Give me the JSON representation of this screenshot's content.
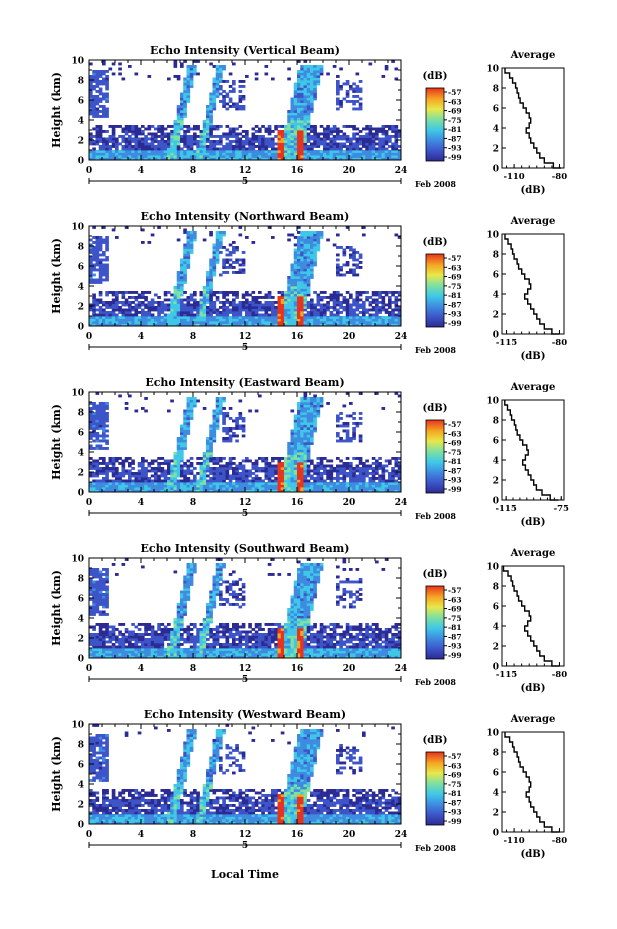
{
  "chart_data": [
    {
      "type": "heatmap",
      "title": "Echo Intensity (Vertical Beam)",
      "ylabel": "Height (km)",
      "ylim": [
        0,
        10
      ],
      "yticks": [
        0,
        2,
        4,
        6,
        8,
        10
      ],
      "xlim": [
        0,
        24
      ],
      "xticks": [
        0,
        4,
        8,
        12,
        16,
        20,
        24
      ],
      "date_axis": {
        "tick": "5",
        "label": "Feb 2008"
      },
      "colorbar": {
        "unit": "(dB)",
        "ticks": [
          "-57",
          "-63",
          "-69",
          "-75",
          "-81",
          "-87",
          "-93",
          "-99"
        ]
      },
      "average_profile": {
        "title": "Average",
        "xlabel": "(dB)",
        "xticks": [
          "-110",
          "-80"
        ],
        "xlim": [
          -118,
          -77
        ],
        "ylim": [
          0,
          10
        ],
        "height": [
          0,
          0.5,
          1,
          1.5,
          2,
          2.5,
          3,
          3.5,
          4,
          4.5,
          5,
          5.5,
          6,
          6.5,
          7,
          7.5,
          8,
          8.5,
          9,
          9.5,
          10
        ],
        "db": [
          -79,
          -84,
          -90,
          -93,
          -95,
          -97,
          -99,
          -100,
          -102,
          -100,
          -99,
          -100,
          -102,
          -104,
          -106,
          -107,
          -108,
          -109,
          -111,
          -113,
          -116
        ]
      }
    },
    {
      "type": "heatmap",
      "title": "Echo Intensity (Northward Beam)",
      "ylabel": "Height (km)",
      "ylim": [
        0,
        10
      ],
      "yticks": [
        0,
        2,
        4,
        6,
        8,
        10
      ],
      "xlim": [
        0,
        24
      ],
      "xticks": [
        0,
        4,
        8,
        12,
        16,
        20,
        24
      ],
      "date_axis": {
        "tick": "5",
        "label": "Feb 2008"
      },
      "colorbar": {
        "unit": "(dB)",
        "ticks": [
          "-57",
          "-63",
          "-69",
          "-75",
          "-81",
          "-87",
          "-93",
          "-99"
        ]
      },
      "average_profile": {
        "title": "Average",
        "xlabel": "(dB)",
        "xticks": [
          "-115",
          "-80"
        ],
        "xlim": [
          -118,
          -77
        ],
        "ylim": [
          0,
          10
        ],
        "height": [
          0,
          0.5,
          1,
          1.5,
          2,
          2.5,
          3,
          3.5,
          4,
          4.5,
          5,
          5.5,
          6,
          6.5,
          7,
          7.5,
          8,
          8.5,
          9,
          9.5,
          10
        ],
        "db": [
          -80,
          -85,
          -90,
          -93,
          -95,
          -97,
          -99,
          -101,
          -103,
          -101,
          -99,
          -100,
          -103,
          -105,
          -107,
          -108,
          -110,
          -111,
          -112,
          -114,
          -116
        ]
      }
    },
    {
      "type": "heatmap",
      "title": "Echo Intensity (Eastward Beam)",
      "ylabel": "Height (km)",
      "ylim": [
        0,
        10
      ],
      "yticks": [
        0,
        2,
        4,
        6,
        8,
        10
      ],
      "xlim": [
        0,
        24
      ],
      "xticks": [
        0,
        4,
        8,
        12,
        16,
        20,
        24
      ],
      "date_axis": {
        "tick": "5",
        "label": "Feb 2008"
      },
      "colorbar": {
        "unit": "(dB)",
        "ticks": [
          "-57",
          "-63",
          "-69",
          "-75",
          "-81",
          "-87",
          "-93",
          "-99"
        ]
      },
      "average_profile": {
        "title": "Average",
        "xlabel": "(dB)",
        "xticks": [
          "-115",
          "-75"
        ],
        "xlim": [
          -118,
          -73
        ],
        "ylim": [
          0,
          10
        ],
        "height": [
          0,
          0.5,
          1,
          1.5,
          2,
          2.5,
          3,
          3.5,
          4,
          4.5,
          5,
          5.5,
          6,
          6.5,
          7,
          7.5,
          8,
          8.5,
          9,
          9.5,
          10
        ],
        "db": [
          -77,
          -83,
          -89,
          -93,
          -95,
          -97,
          -99,
          -101,
          -103,
          -101,
          -99,
          -100,
          -103,
          -105,
          -107,
          -108,
          -109,
          -111,
          -112,
          -114,
          -116
        ]
      }
    },
    {
      "type": "heatmap",
      "title": "Echo Intensity (Southward Beam)",
      "ylabel": "Height (km)",
      "ylim": [
        0,
        10
      ],
      "yticks": [
        0,
        2,
        4,
        6,
        8,
        10
      ],
      "xlim": [
        0,
        24
      ],
      "xticks": [
        0,
        4,
        8,
        12,
        16,
        20,
        24
      ],
      "date_axis": {
        "tick": "5",
        "label": "Feb 2008"
      },
      "colorbar": {
        "unit": "(dB)",
        "ticks": [
          "-57",
          "-63",
          "-69",
          "-75",
          "-81",
          "-87",
          "-93",
          "-99"
        ]
      },
      "average_profile": {
        "title": "Average",
        "xlabel": "(dB)",
        "xticks": [
          "-115",
          "-80"
        ],
        "xlim": [
          -118,
          -77
        ],
        "ylim": [
          0,
          10
        ],
        "height": [
          0,
          0.5,
          1,
          1.5,
          2,
          2.5,
          3,
          3.5,
          4,
          4.5,
          5,
          5.5,
          6,
          6.5,
          7,
          7.5,
          8,
          8.5,
          9,
          9.5,
          10
        ],
        "db": [
          -80,
          -85,
          -90,
          -93,
          -95,
          -97,
          -99,
          -101,
          -103,
          -101,
          -99,
          -100,
          -103,
          -105,
          -107,
          -108,
          -110,
          -111,
          -112,
          -114,
          -117
        ]
      }
    },
    {
      "type": "heatmap",
      "title": "Echo Intensity (Westward Beam)",
      "ylabel": "Height (km)",
      "ylim": [
        0,
        10
      ],
      "yticks": [
        0,
        2,
        4,
        6,
        8,
        10
      ],
      "xlim": [
        0,
        24
      ],
      "xticks": [
        0,
        4,
        8,
        12,
        16,
        20,
        24
      ],
      "date_axis": {
        "tick": "5",
        "label": "Feb 2008"
      },
      "colorbar": {
        "unit": "(dB)",
        "ticks": [
          "-57",
          "-63",
          "-69",
          "-75",
          "-81",
          "-87",
          "-93",
          "-99"
        ]
      },
      "average_profile": {
        "title": "Average",
        "xlabel": "(dB)",
        "xticks": [
          "-110",
          "-80"
        ],
        "xlim": [
          -118,
          -77
        ],
        "ylim": [
          0,
          10
        ],
        "height": [
          0,
          0.5,
          1,
          1.5,
          2,
          2.5,
          3,
          3.5,
          4,
          4.5,
          5,
          5.5,
          6,
          6.5,
          7,
          7.5,
          8,
          8.5,
          9,
          9.5,
          10
        ],
        "db": [
          -80,
          -85,
          -90,
          -93,
          -95,
          -97,
          -99,
          -100,
          -102,
          -100,
          -99,
          -100,
          -102,
          -104,
          -106,
          -107,
          -108,
          -110,
          -111,
          -113,
          -116
        ]
      }
    }
  ],
  "xlabel": "Local Time",
  "colors": {
    "scale": [
      "#2b2b93",
      "#3d55c8",
      "#3f8be0",
      "#3fc7e8",
      "#7fe0a0",
      "#e8e84a",
      "#f5a623",
      "#e8341c"
    ],
    "background": "#ffffff",
    "axis": "#000000"
  }
}
